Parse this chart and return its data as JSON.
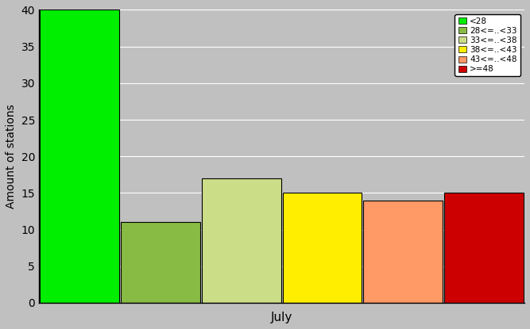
{
  "bars": [
    {
      "label": "<28",
      "value": 40,
      "color": "#00EE00"
    },
    {
      "label": "28<=..<33",
      "value": 11,
      "color": "#88BB44"
    },
    {
      "label": "33<=..<38",
      "value": 17,
      "color": "#CCDD88"
    },
    {
      "label": "38<=..<43",
      "value": 15,
      "color": "#FFEE00"
    },
    {
      "label": "43<=..<48",
      "value": 14,
      "color": "#FF9966"
    },
    {
      "label": ">=48",
      "value": 15,
      "color": "#CC0000"
    }
  ],
  "ylabel": "Amount of stations",
  "xlabel": "July",
  "ylim": [
    0,
    40
  ],
  "yticks": [
    0,
    5,
    10,
    15,
    20,
    25,
    30,
    35,
    40
  ],
  "background_color": "#C0C0C0",
  "legend_fontsize": 7.5,
  "ylabel_fontsize": 10,
  "xlabel_fontsize": 11,
  "tick_fontsize": 10
}
